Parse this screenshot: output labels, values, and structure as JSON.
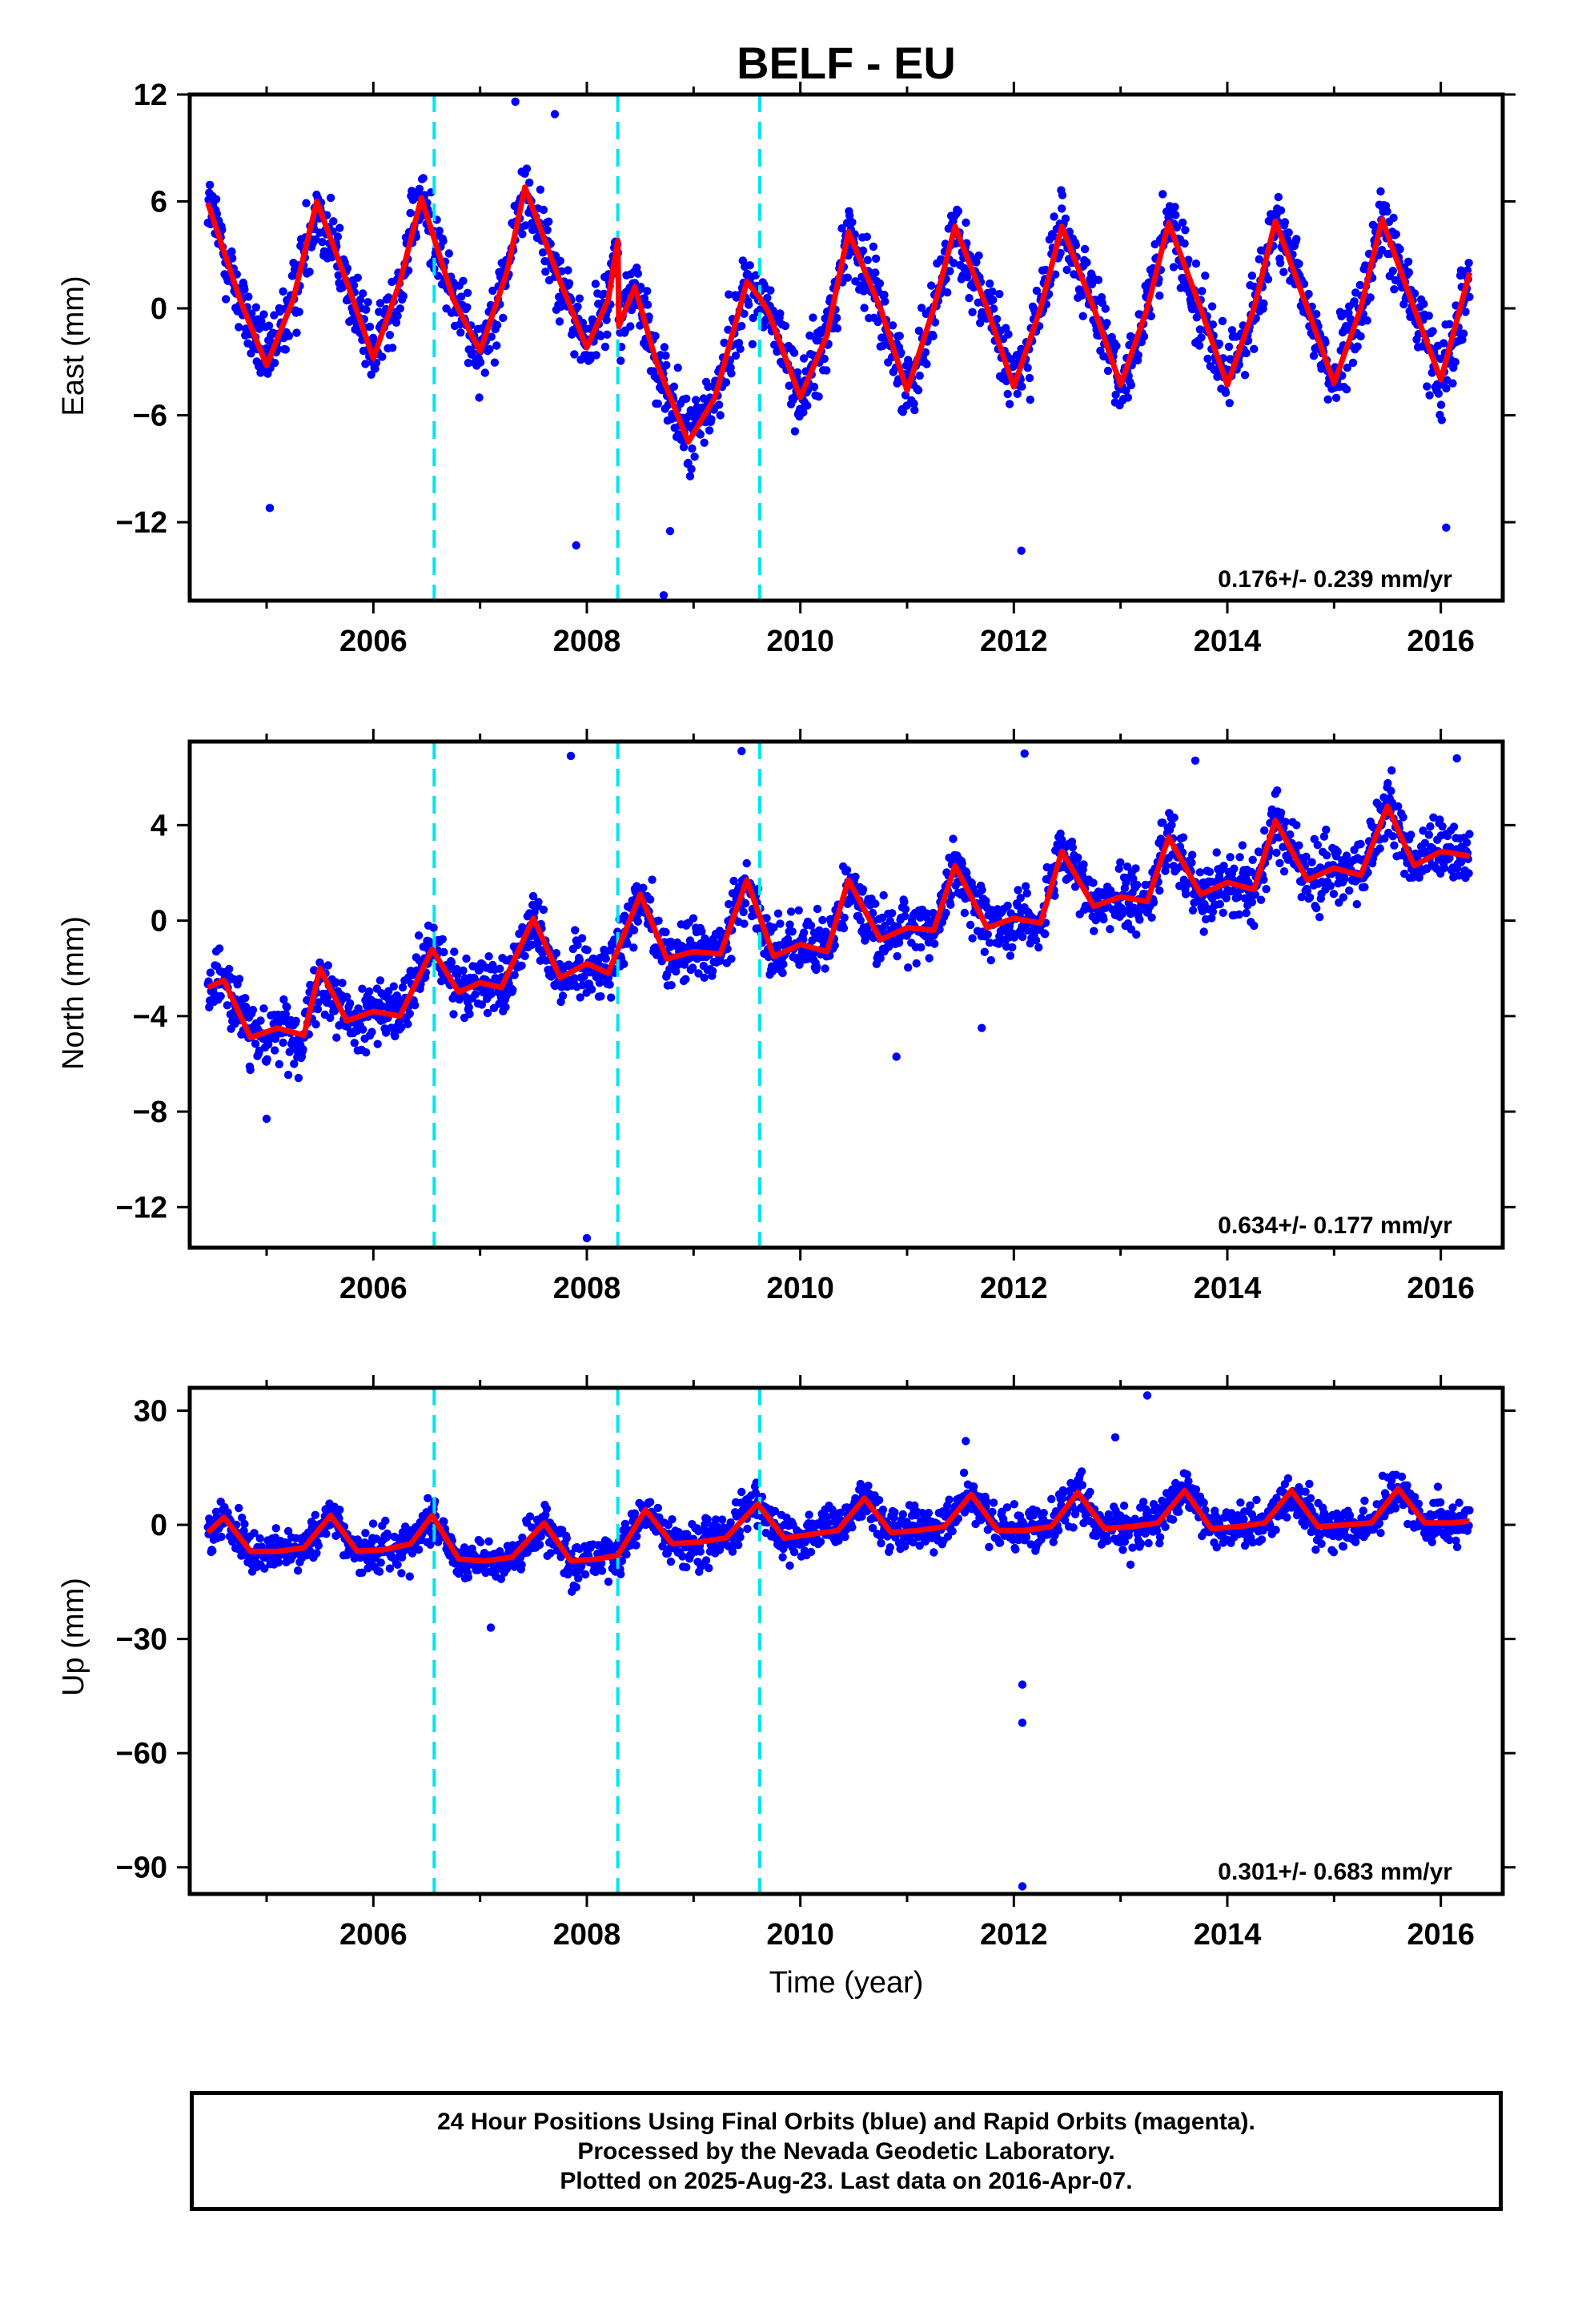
{
  "chart_data": {
    "type": "scatter",
    "title": "BELF - EU",
    "xlabel": "Time (year)",
    "xlim": [
      2004.28,
      2016.58
    ],
    "xticks": [
      2006,
      2008,
      2010,
      2012,
      2014,
      2016
    ],
    "xtick_labels": [
      "2006",
      "2008",
      "2010",
      "2012",
      "2014",
      "2016"
    ],
    "data_start": 2004.45,
    "data_end": 2016.27,
    "equipment_changes": [
      2006.57,
      2008.29,
      2009.62
    ],
    "colors": {
      "points": "#0000ff",
      "model": "#ff0000",
      "breaks": "#00e5ee",
      "frame": "#000000"
    },
    "panels": [
      {
        "id": "east",
        "ylabel": "East (mm)",
        "ylim": [
          -16.4,
          12
        ],
        "yticks": [
          12,
          6,
          0,
          -6,
          -12
        ],
        "ytick_labels": [
          "12",
          "6",
          "0",
          "−6",
          "−12"
        ],
        "rate_label": "0.176+/- 0.239 mm/yr",
        "model": {
          "x": [
            2004.45,
            2004.75,
            2005.0,
            2005.25,
            2005.47,
            2005.75,
            2006.0,
            2006.25,
            2006.45,
            2006.75,
            2007.0,
            2007.25,
            2007.42,
            2007.75,
            2008.0,
            2008.2,
            2008.29,
            2008.3,
            2008.45,
            2008.65,
            2008.95,
            2009.2,
            2009.5,
            2009.62,
            2009.7,
            2010.0,
            2010.25,
            2010.45,
            2010.75,
            2011.0,
            2011.25,
            2011.45,
            2011.75,
            2012.0,
            2012.25,
            2012.45,
            2012.75,
            2013.0,
            2013.25,
            2013.45,
            2013.75,
            2014.0,
            2014.25,
            2014.45,
            2014.75,
            2015.0,
            2015.25,
            2015.45,
            2015.75,
            2016.0,
            2016.27
          ],
          "y": [
            5.9,
            0.5,
            -3.2,
            0.5,
            6.0,
            1.5,
            -2.8,
            1.5,
            6.2,
            0.5,
            -2.4,
            2.0,
            6.8,
            1.5,
            -2.2,
            0.5,
            3.8,
            -1.0,
            1.2,
            -3.0,
            -7.5,
            -5.0,
            1.5,
            0.6,
            -0.2,
            -5.0,
            -1.5,
            4.3,
            0.0,
            -4.6,
            0.0,
            4.6,
            0.0,
            -4.4,
            0.0,
            4.6,
            0.0,
            -4.3,
            0.0,
            4.8,
            0.0,
            -4.3,
            0.0,
            4.9,
            0.0,
            -4.2,
            0.0,
            5.0,
            0.0,
            -4.0,
            2.0
          ]
        },
        "scatter": {
          "amp": 5.0,
          "offset": 0.3,
          "trend": -0.3,
          "noise": 1.6,
          "outliers": [
            [
              2007.33,
              11.6
            ],
            [
              2007.7,
              10.9
            ],
            [
              2008.72,
              -16.1
            ],
            [
              2012.07,
              -13.6
            ],
            [
              2007.9,
              -13.3
            ],
            [
              2008.78,
              -12.5
            ],
            [
              2016.05,
              -12.3
            ],
            [
              2005.03,
              -11.2
            ]
          ]
        }
      },
      {
        "id": "north",
        "ylabel": "North (mm)",
        "ylim": [
          -13.7,
          7.5
        ],
        "yticks": [
          4,
          0,
          -4,
          -8,
          -12
        ],
        "ytick_labels": [
          "4",
          "0",
          "−4",
          "−8",
          "−12"
        ],
        "rate_label": "0.634+/- 0.177 mm/yr",
        "model": {
          "x": [
            2004.45,
            2004.6,
            2004.85,
            2005.1,
            2005.35,
            2005.5,
            2005.75,
            2006.0,
            2006.25,
            2006.55,
            2006.8,
            2007.0,
            2007.2,
            2007.5,
            2007.75,
            2008.0,
            2008.2,
            2008.5,
            2008.75,
            2009.0,
            2009.25,
            2009.5,
            2009.75,
            2010.0,
            2010.25,
            2010.45,
            2010.75,
            2011.0,
            2011.25,
            2011.45,
            2011.75,
            2012.0,
            2012.25,
            2012.45,
            2012.75,
            2013.0,
            2013.25,
            2013.45,
            2013.75,
            2014.0,
            2014.25,
            2014.45,
            2014.75,
            2015.0,
            2015.25,
            2015.5,
            2015.75,
            2016.0,
            2016.27
          ],
          "y": [
            -2.8,
            -2.5,
            -4.9,
            -4.5,
            -4.8,
            -2.0,
            -4.2,
            -3.8,
            -4.0,
            -1.2,
            -3.0,
            -2.6,
            -2.8,
            0.1,
            -2.4,
            -1.8,
            -2.2,
            1.1,
            -1.6,
            -1.3,
            -1.4,
            1.7,
            -1.5,
            -1.0,
            -1.3,
            1.7,
            -0.8,
            -0.3,
            -0.4,
            2.3,
            -0.3,
            0.1,
            -0.1,
            2.9,
            0.6,
            1.0,
            0.8,
            3.5,
            1.1,
            1.6,
            1.3,
            4.2,
            1.7,
            2.2,
            1.9,
            4.8,
            2.3,
            2.9,
            2.7
          ]
        },
        "scatter": {
          "amp": 1.3,
          "offset": 0.0,
          "trend": 0.634,
          "noise": 1.0,
          "outliers": [
            [
              2008.0,
              -13.3
            ],
            [
              2007.85,
              6.9
            ],
            [
              2009.45,
              7.1
            ],
            [
              2012.1,
              7.0
            ],
            [
              2013.7,
              6.7
            ],
            [
              2016.15,
              6.8
            ],
            [
              2011.7,
              -4.5
            ],
            [
              2005.0,
              -8.3
            ],
            [
              2010.9,
              -5.7
            ]
          ]
        }
      },
      {
        "id": "up",
        "ylabel": "Up (mm)",
        "ylim": [
          -97,
          36
        ],
        "yticks": [
          30,
          0,
          -30,
          -60,
          -90
        ],
        "ytick_labels": [
          "30",
          "0",
          "−30",
          "−60",
          "−90"
        ],
        "rate_label": "0.301+/- 0.683 mm/yr",
        "model": {
          "x": [
            2004.45,
            2004.6,
            2004.85,
            2005.1,
            2005.35,
            2005.6,
            2005.85,
            2006.1,
            2006.35,
            2006.55,
            2006.8,
            2007.05,
            2007.3,
            2007.6,
            2007.85,
            2008.1,
            2008.29,
            2008.55,
            2008.8,
            2009.05,
            2009.3,
            2009.6,
            2009.85,
            2010.1,
            2010.35,
            2010.6,
            2010.85,
            2011.1,
            2011.35,
            2011.6,
            2011.85,
            2012.1,
            2012.35,
            2012.6,
            2012.85,
            2013.1,
            2013.35,
            2013.6,
            2013.85,
            2014.1,
            2014.35,
            2014.6,
            2014.85,
            2015.1,
            2015.35,
            2015.6,
            2015.85,
            2016.1,
            2016.27
          ],
          "y": [
            -2.0,
            2.0,
            -7.0,
            -7.0,
            -6.0,
            2.5,
            -7.0,
            -6.5,
            -5.0,
            2.5,
            -9.0,
            -9.5,
            -8.5,
            0.5,
            -9.5,
            -9.0,
            -8.0,
            4.0,
            -5.0,
            -4.5,
            -3.5,
            5.5,
            -3.5,
            -2.5,
            -1.5,
            7.0,
            -2.0,
            -1.5,
            -0.5,
            8.0,
            -1.5,
            -1.5,
            -0.5,
            8.5,
            -1.0,
            -0.5,
            0.5,
            9.0,
            -1.0,
            -0.5,
            0.5,
            9.0,
            -0.5,
            0.0,
            0.5,
            9.5,
            0.5,
            0.5,
            1.0
          ]
        },
        "scatter": {
          "amp": 0.0,
          "offset": 0.0,
          "trend": 0.0,
          "noise": 4.5,
          "outliers": [
            [
              2012.08,
              -42.0
            ],
            [
              2012.08,
              -52.0
            ],
            [
              2012.08,
              -95.0
            ],
            [
              2013.25,
              34.0
            ],
            [
              2007.1,
              -27.0
            ],
            [
              2011.55,
              22.0
            ],
            [
              2012.95,
              23.0
            ]
          ]
        }
      }
    ]
  },
  "caption": {
    "line1": "24 Hour Positions Using Final Orbits (blue) and Rapid Orbits (magenta).",
    "line2": "Processed by the Nevada Geodetic Laboratory.",
    "line3": "Plotted on 2025-Aug-23. Last data on 2016-Apr-07."
  }
}
